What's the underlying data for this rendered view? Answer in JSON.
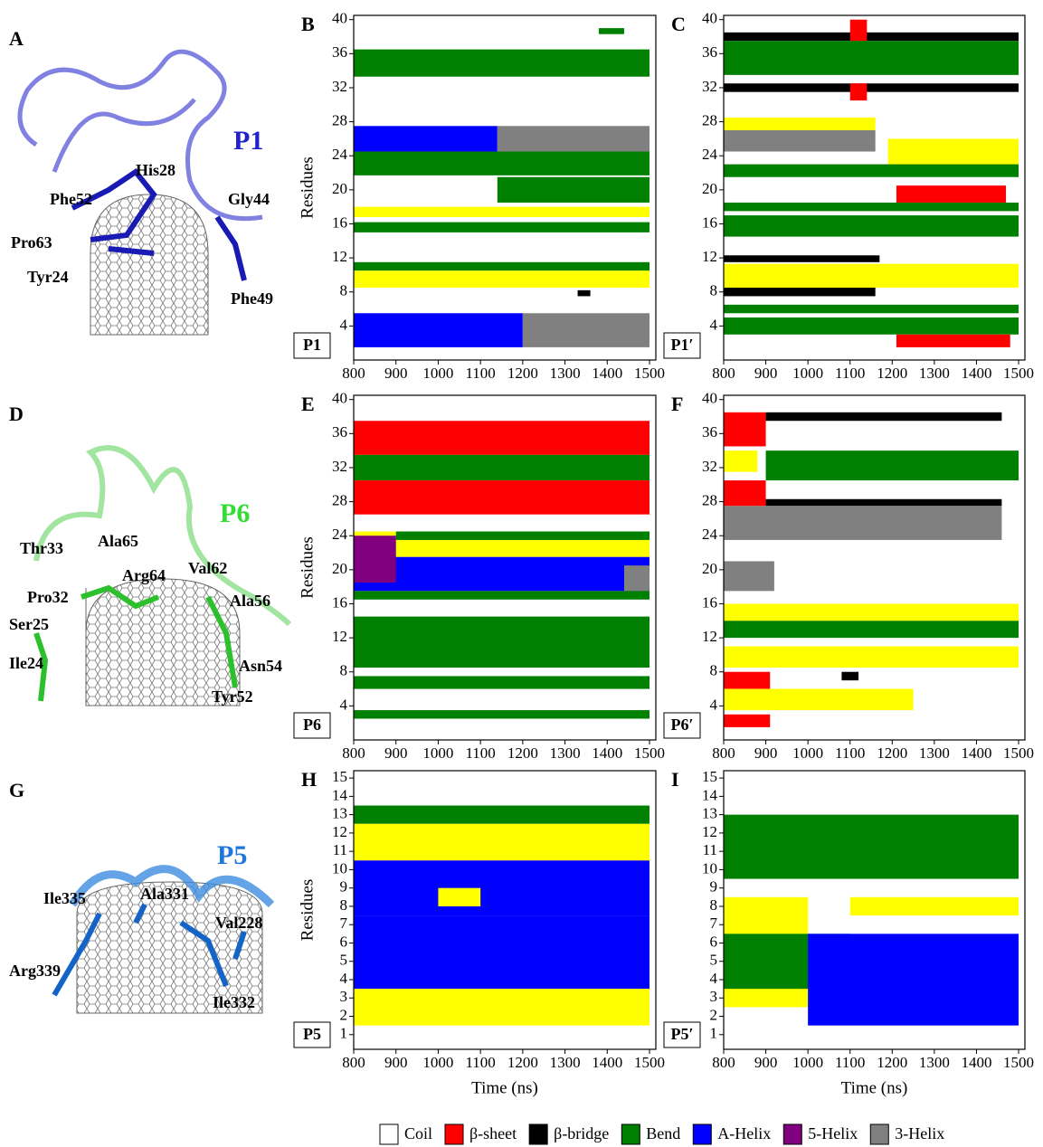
{
  "images": [
    {
      "letter": "A",
      "title": "P1",
      "labels": [
        "His28",
        "Phe52",
        "Gly44",
        "Pro63",
        "Tyr24",
        "Phe49"
      ]
    },
    {
      "letter": "D",
      "title": "P6",
      "labels": [
        "Thr33",
        "Ala65",
        "Arg64",
        "Val62",
        "Pro32",
        "Ala56",
        "Ser25",
        "Ile24",
        "Asn54",
        "Tyr52"
      ]
    },
    {
      "letter": "G",
      "title": "P5",
      "labels": [
        "Ile335",
        "Ala331",
        "Val228",
        "Arg339",
        "Ile332"
      ]
    }
  ],
  "legend": [
    {
      "name": "Coil",
      "color": "#ffffff"
    },
    {
      "name": "β-sheet",
      "color": "#ff0000"
    },
    {
      "name": "β-bridge",
      "color": "#000000"
    },
    {
      "name": "Bend",
      "color": "#008000"
    },
    {
      "name": "A-Helix",
      "color": "#0000ff"
    },
    {
      "name": "5-Helix",
      "color": "#800080"
    },
    {
      "name": "3-Helix",
      "color": "#808080"
    }
  ],
  "chart_data": [
    {
      "type": "heatmap",
      "panel": "B",
      "tag": "P1",
      "ylabel": "Residues",
      "xlim": [
        800,
        1515
      ],
      "xticks": [
        800,
        900,
        1000,
        1100,
        1200,
        1300,
        1400,
        1500
      ],
      "ylim": [
        0,
        40.5
      ],
      "yticks": [
        4,
        8,
        12,
        16,
        20,
        24,
        28,
        32,
        36,
        40
      ],
      "blocks": [
        {
          "x": [
            800,
            1500
          ],
          "y": [
            33.3,
            36.5
          ],
          "color": "#008000"
        },
        {
          "x": [
            1380,
            1440
          ],
          "y": [
            38.3,
            39
          ],
          "color": "#008000"
        },
        {
          "x": [
            800,
            1140
          ],
          "y": [
            24.5,
            27.5
          ],
          "color": "#0000ff"
        },
        {
          "x": [
            1140,
            1500
          ],
          "y": [
            24.5,
            27.5
          ],
          "color": "#808080"
        },
        {
          "x": [
            800,
            1500
          ],
          "y": [
            21.7,
            24.5
          ],
          "color": "#008000"
        },
        {
          "x": [
            1140,
            1500
          ],
          "y": [
            18.5,
            21.5
          ],
          "color": "#008000"
        },
        {
          "x": [
            800,
            1500
          ],
          "y": [
            16.8,
            18
          ],
          "color": "#ffff00"
        },
        {
          "x": [
            800,
            1500
          ],
          "y": [
            15,
            16.2
          ],
          "color": "#008000"
        },
        {
          "x": [
            800,
            1500
          ],
          "y": [
            10.5,
            11.5
          ],
          "color": "#008000"
        },
        {
          "x": [
            800,
            1500
          ],
          "y": [
            8.5,
            10.5
          ],
          "color": "#ffff00"
        },
        {
          "x": [
            1330,
            1360
          ],
          "y": [
            7.5,
            8.2
          ],
          "color": "#000000"
        },
        {
          "x": [
            800,
            1200
          ],
          "y": [
            1.5,
            5.5
          ],
          "color": "#0000ff"
        },
        {
          "x": [
            1200,
            1500
          ],
          "y": [
            1.5,
            5.5
          ],
          "color": "#808080"
        }
      ]
    },
    {
      "type": "heatmap",
      "panel": "C",
      "tag": "P1′",
      "xlim": [
        800,
        1515
      ],
      "xticks": [
        800,
        900,
        1000,
        1100,
        1200,
        1300,
        1400,
        1500
      ],
      "ylim": [
        0,
        40.5
      ],
      "yticks": [
        4,
        8,
        12,
        16,
        20,
        24,
        28,
        32,
        36,
        40
      ],
      "blocks": [
        {
          "x": [
            800,
            1500
          ],
          "y": [
            37.5,
            38.5
          ],
          "color": "#000000"
        },
        {
          "x": [
            1100,
            1140
          ],
          "y": [
            37.5,
            40
          ],
          "color": "#ff0000"
        },
        {
          "x": [
            800,
            1500
          ],
          "y": [
            33.5,
            37.5
          ],
          "color": "#008000"
        },
        {
          "x": [
            800,
            1500
          ],
          "y": [
            31.5,
            32.5
          ],
          "color": "#000000"
        },
        {
          "x": [
            1100,
            1140
          ],
          "y": [
            30.5,
            32.5
          ],
          "color": "#ff0000"
        },
        {
          "x": [
            800,
            1160
          ],
          "y": [
            26.5,
            28.5
          ],
          "color": "#ffff00"
        },
        {
          "x": [
            800,
            1160
          ],
          "y": [
            24.5,
            27
          ],
          "color": "#808080"
        },
        {
          "x": [
            1190,
            1500
          ],
          "y": [
            22.5,
            26
          ],
          "color": "#ffff00"
        },
        {
          "x": [
            800,
            1500
          ],
          "y": [
            21.5,
            23
          ],
          "color": "#008000"
        },
        {
          "x": [
            1210,
            1470
          ],
          "y": [
            18.5,
            20.5
          ],
          "color": "#ff0000"
        },
        {
          "x": [
            800,
            1500
          ],
          "y": [
            17.5,
            18.5
          ],
          "color": "#008000"
        },
        {
          "x": [
            800,
            1500
          ],
          "y": [
            14.5,
            17
          ],
          "color": "#008000"
        },
        {
          "x": [
            800,
            1170
          ],
          "y": [
            11.5,
            12.3
          ],
          "color": "#000000"
        },
        {
          "x": [
            800,
            1500
          ],
          "y": [
            8.5,
            11.3
          ],
          "color": "#ffff00"
        },
        {
          "x": [
            800,
            1160
          ],
          "y": [
            7.5,
            8.5
          ],
          "color": "#000000"
        },
        {
          "x": [
            800,
            1500
          ],
          "y": [
            5.5,
            6.5
          ],
          "color": "#008000"
        },
        {
          "x": [
            800,
            1500
          ],
          "y": [
            3,
            5
          ],
          "color": "#008000"
        },
        {
          "x": [
            1210,
            1480
          ],
          "y": [
            1.5,
            3
          ],
          "color": "#ff0000"
        }
      ]
    },
    {
      "type": "heatmap",
      "panel": "E",
      "tag": "P6",
      "ylabel": "Residues",
      "xlim": [
        800,
        1515
      ],
      "xticks": [
        800,
        900,
        1000,
        1100,
        1200,
        1300,
        1400,
        1500
      ],
      "ylim": [
        0,
        40.5
      ],
      "yticks": [
        4,
        8,
        12,
        16,
        20,
        24,
        28,
        32,
        36,
        40
      ],
      "blocks": [
        {
          "x": [
            800,
            1500
          ],
          "y": [
            33.5,
            37.5
          ],
          "color": "#ff0000"
        },
        {
          "x": [
            800,
            1500
          ],
          "y": [
            30.5,
            33.5
          ],
          "color": "#008000"
        },
        {
          "x": [
            800,
            1500
          ],
          "y": [
            26.5,
            30.5
          ],
          "color": "#ff0000"
        },
        {
          "x": [
            800,
            1500
          ],
          "y": [
            21.5,
            24.5
          ],
          "color": "#ffff00"
        },
        {
          "x": [
            900,
            1500
          ],
          "y": [
            23.5,
            24.5
          ],
          "color": "#008000"
        },
        {
          "x": [
            800,
            1500
          ],
          "y": [
            17.5,
            21.5
          ],
          "color": "#0000ff"
        },
        {
          "x": [
            800,
            900
          ],
          "y": [
            18.5,
            24
          ],
          "color": "#800080"
        },
        {
          "x": [
            1440,
            1500
          ],
          "y": [
            17.5,
            20.5
          ],
          "color": "#808080"
        },
        {
          "x": [
            800,
            1500
          ],
          "y": [
            16.5,
            17.5
          ],
          "color": "#008000"
        },
        {
          "x": [
            800,
            1500
          ],
          "y": [
            8.5,
            14.5
          ],
          "color": "#008000"
        },
        {
          "x": [
            800,
            1500
          ],
          "y": [
            6,
            7.5
          ],
          "color": "#008000"
        },
        {
          "x": [
            800,
            1500
          ],
          "y": [
            2.5,
            3.5
          ],
          "color": "#008000"
        }
      ]
    },
    {
      "type": "heatmap",
      "panel": "F",
      "tag": "P6′",
      "xlim": [
        800,
        1515
      ],
      "xticks": [
        800,
        900,
        1000,
        1100,
        1200,
        1300,
        1400,
        1500
      ],
      "ylim": [
        0,
        40.5
      ],
      "yticks": [
        4,
        8,
        12,
        16,
        20,
        24,
        28,
        32,
        36,
        40
      ],
      "blocks": [
        {
          "x": [
            900,
            1460
          ],
          "y": [
            37.5,
            38.5
          ],
          "color": "#000000"
        },
        {
          "x": [
            800,
            900
          ],
          "y": [
            34.5,
            38.5
          ],
          "color": "#ff0000"
        },
        {
          "x": [
            900,
            1500
          ],
          "y": [
            30.5,
            34
          ],
          "color": "#008000"
        },
        {
          "x": [
            800,
            880
          ],
          "y": [
            31.5,
            34
          ],
          "color": "#ffff00"
        },
        {
          "x": [
            800,
            900
          ],
          "y": [
            27.5,
            30.5
          ],
          "color": "#ff0000"
        },
        {
          "x": [
            900,
            1460
          ],
          "y": [
            27.5,
            28.3
          ],
          "color": "#000000"
        },
        {
          "x": [
            800,
            1460
          ],
          "y": [
            23.5,
            27.5
          ],
          "color": "#808080"
        },
        {
          "x": [
            800,
            920
          ],
          "y": [
            17.5,
            21
          ],
          "color": "#808080"
        },
        {
          "x": [
            800,
            1500
          ],
          "y": [
            14,
            16
          ],
          "color": "#ffff00"
        },
        {
          "x": [
            800,
            1500
          ],
          "y": [
            12,
            14
          ],
          "color": "#008000"
        },
        {
          "x": [
            800,
            1500
          ],
          "y": [
            8.5,
            11
          ],
          "color": "#ffff00"
        },
        {
          "x": [
            800,
            910
          ],
          "y": [
            6,
            8
          ],
          "color": "#ff0000"
        },
        {
          "x": [
            1080,
            1120
          ],
          "y": [
            7,
            8
          ],
          "color": "#000000"
        },
        {
          "x": [
            800,
            1250
          ],
          "y": [
            3.5,
            6
          ],
          "color": "#ffff00"
        },
        {
          "x": [
            800,
            910
          ],
          "y": [
            1.5,
            3
          ],
          "color": "#ff0000"
        }
      ]
    },
    {
      "type": "heatmap",
      "panel": "H",
      "tag": "P5",
      "ylabel": "Residues",
      "xlabel": "Time (ns)",
      "xlim": [
        800,
        1515
      ],
      "xticks": [
        800,
        900,
        1000,
        1100,
        1200,
        1300,
        1400,
        1500
      ],
      "ylim": [
        0.2,
        15.4
      ],
      "yticks": [
        1,
        2,
        3,
        4,
        5,
        6,
        7,
        8,
        9,
        10,
        11,
        12,
        13,
        14,
        15
      ],
      "blocks": [
        {
          "x": [
            800,
            1500
          ],
          "y": [
            12.5,
            13.5
          ],
          "color": "#008000"
        },
        {
          "x": [
            800,
            1500
          ],
          "y": [
            10.5,
            12.5
          ],
          "color": "#ffff00"
        },
        {
          "x": [
            800,
            1500
          ],
          "y": [
            7.5,
            10.5
          ],
          "color": "#0000ff"
        },
        {
          "x": [
            1000,
            1100
          ],
          "y": [
            8,
            9
          ],
          "color": "#ffff00"
        },
        {
          "x": [
            800,
            1500
          ],
          "y": [
            3.5,
            7.5
          ],
          "color": "#0000ff"
        },
        {
          "x": [
            800,
            1500
          ],
          "y": [
            1.5,
            3.5
          ],
          "color": "#ffff00"
        }
      ]
    },
    {
      "type": "heatmap",
      "panel": "I",
      "tag": "P5′",
      "xlabel": "Time (ns)",
      "xlim": [
        800,
        1515
      ],
      "xticks": [
        800,
        900,
        1000,
        1100,
        1200,
        1300,
        1400,
        1500
      ],
      "ylim": [
        0.2,
        15.4
      ],
      "yticks": [
        1,
        2,
        3,
        4,
        5,
        6,
        7,
        8,
        9,
        10,
        11,
        12,
        13,
        14,
        15
      ],
      "blocks": [
        {
          "x": [
            800,
            1500
          ],
          "y": [
            9.5,
            13
          ],
          "color": "#008000"
        },
        {
          "x": [
            1100,
            1500
          ],
          "y": [
            7.5,
            8.5
          ],
          "color": "#ffff00"
        },
        {
          "x": [
            800,
            1000
          ],
          "y": [
            2.5,
            8.5
          ],
          "color": "#ffff00"
        },
        {
          "x": [
            800,
            1100
          ],
          "y": [
            3.5,
            6.5
          ],
          "color": "#008000"
        },
        {
          "x": [
            1000,
            1500
          ],
          "y": [
            1.5,
            6.5
          ],
          "color": "#0000ff"
        }
      ]
    }
  ]
}
